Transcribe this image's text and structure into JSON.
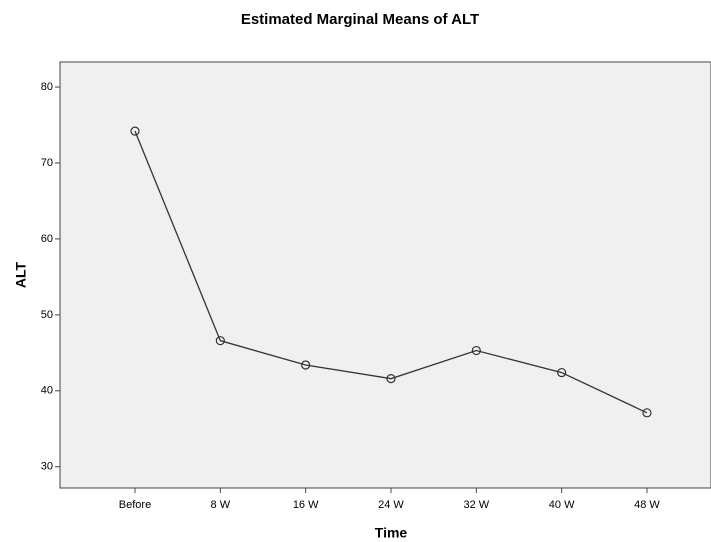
{
  "chart_data": {
    "type": "line",
    "title": "Estimated Marginal Means of ALT",
    "x_label": "Time",
    "y_label": "ALT",
    "categories": [
      "Before",
      "8 W",
      "16 W",
      "24 W",
      "32 W",
      "40 W",
      "48 W"
    ],
    "series": [
      {
        "name": "ALT",
        "color": "#333333",
        "values": [
          74.2,
          46.6,
          43.4,
          41.6,
          45.3,
          42.4,
          37.1
        ]
      }
    ],
    "ylim": [
      27.2,
      83.3
    ],
    "yticks": [
      30,
      40,
      50,
      60,
      70,
      80
    ],
    "grid": false
  }
}
